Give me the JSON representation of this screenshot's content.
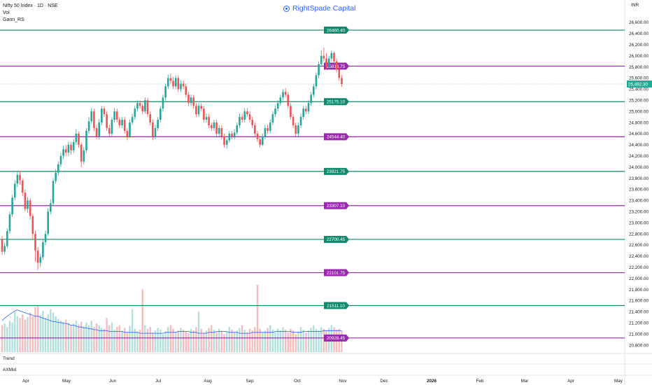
{
  "header": {
    "symbol_title": "Nifty 50 Index · 1D · NSE",
    "indicator_vol": "Vol",
    "indicator_gann": "Gann_RS",
    "watermark": "RightSpade Capital",
    "currency": "INR"
  },
  "panes": {
    "trend_label": "Trend",
    "axmid_label": "AXMid"
  },
  "colors": {
    "up": "#26a69a",
    "down": "#ef5350",
    "vol_up": "#b2dfdb",
    "vol_down": "#f8bbbd",
    "support": "#0f8a6c",
    "resistance": "#9c27b0",
    "ma": "#2962ff",
    "price_tag": "#22ab94"
  },
  "chart_data": {
    "type": "candlestick",
    "title": "Nifty 50 Index · 1D · NSE",
    "y_axis": {
      "min": 20750,
      "max": 26700,
      "tick_labels": [
        "26,600.00",
        "26,400.00",
        "26,200.00",
        "26,000.00",
        "25,800.00",
        "25,600.00",
        "25,400.00",
        "25,200.00",
        "25,000.00",
        "24,800.00",
        "24,600.00",
        "24,400.00",
        "24,200.00",
        "24,000.00",
        "23,800.00",
        "23,600.00",
        "23,400.00",
        "23,200.00",
        "23,000.00",
        "22,800.00",
        "22,600.00",
        "22,400.00",
        "22,200.00",
        "22,000.00",
        "21,800.00",
        "21,600.00",
        "21,400.00",
        "21,200.00",
        "21,000.00",
        "20,800.00"
      ]
    },
    "x_axis": {
      "tick_labels": [
        "Apr",
        "May",
        "Jun",
        "Jul",
        "Aug",
        "Sep",
        "Oct",
        "Nov",
        "Dec",
        "2026",
        "Feb",
        "Mar",
        "Apr",
        "May"
      ]
    },
    "last_price": 25492.3,
    "last_price_label": "25,492.30",
    "levels": [
      {
        "value": 26460.4,
        "label": "26460.40",
        "kind": "support"
      },
      {
        "value": 25813.75,
        "label": "25813.75",
        "kind": "resistance"
      },
      {
        "value": 25175.1,
        "label": "25175.10",
        "kind": "support"
      },
      {
        "value": 24544.4,
        "label": "24544.40",
        "kind": "resistance"
      },
      {
        "value": 23921.75,
        "label": "23921.75",
        "kind": "support"
      },
      {
        "value": 23307.1,
        "label": "23307.10",
        "kind": "resistance"
      },
      {
        "value": 22700.45,
        "label": "22700.45",
        "kind": "support"
      },
      {
        "value": 22101.75,
        "label": "22101.75",
        "kind": "resistance"
      },
      {
        "value": 21511.1,
        "label": "21511.10",
        "kind": "support"
      },
      {
        "value": 20928.45,
        "label": "20928.45",
        "kind": "resistance"
      }
    ],
    "candles": [
      [
        22700,
        22480,
        22760,
        22420
      ],
      [
        22480,
        22580,
        22640,
        22430
      ],
      [
        22580,
        22850,
        22900,
        22540
      ],
      [
        22850,
        23150,
        23200,
        22800
      ],
      [
        23150,
        23450,
        23500,
        23100
      ],
      [
        23450,
        23700,
        23760,
        23400
      ],
      [
        23700,
        23860,
        23920,
        23640
      ],
      [
        23860,
        23760,
        23930,
        23680
      ],
      [
        23760,
        23540,
        23800,
        23480
      ],
      [
        23540,
        23250,
        23600,
        23200
      ],
      [
        23250,
        23400,
        23460,
        23180
      ],
      [
        23400,
        23120,
        23440,
        23050
      ],
      [
        23120,
        22800,
        23160,
        22700
      ],
      [
        22800,
        22500,
        22860,
        22300
      ],
      [
        22500,
        22280,
        22560,
        22150
      ],
      [
        22280,
        22380,
        22440,
        22200
      ],
      [
        22380,
        22650,
        22700,
        22330
      ],
      [
        22650,
        22800,
        22860,
        22600
      ],
      [
        22800,
        23200,
        23260,
        22760
      ],
      [
        23200,
        23350,
        23420,
        23150
      ],
      [
        23350,
        23750,
        23800,
        23300
      ],
      [
        23750,
        23900,
        23960,
        23700
      ],
      [
        23900,
        24050,
        24100,
        23850
      ],
      [
        24050,
        24200,
        24260,
        24000
      ],
      [
        24200,
        24320,
        24380,
        24150
      ],
      [
        24320,
        24260,
        24400,
        24200
      ],
      [
        24260,
        24400,
        24460,
        24200
      ],
      [
        24400,
        24300,
        24450,
        24220
      ],
      [
        24300,
        24450,
        24500,
        24250
      ],
      [
        24450,
        24600,
        24680,
        24400
      ],
      [
        24600,
        24400,
        24640,
        24350
      ],
      [
        24400,
        24100,
        24440,
        24000
      ],
      [
        24100,
        24300,
        24360,
        24050
      ],
      [
        24300,
        24650,
        24700,
        24250
      ],
      [
        24650,
        24820,
        24900,
        24600
      ],
      [
        24820,
        25000,
        25060,
        24780
      ],
      [
        25000,
        24700,
        25050,
        24650
      ],
      [
        24700,
        24550,
        24760,
        24500
      ],
      [
        24550,
        24800,
        24860,
        24500
      ],
      [
        24800,
        25050,
        25100,
        24750
      ],
      [
        25050,
        24950,
        25100,
        24900
      ],
      [
        24950,
        24700,
        25000,
        24650
      ],
      [
        24700,
        24600,
        24760,
        24550
      ],
      [
        24600,
        24850,
        24900,
        24560
      ],
      [
        24850,
        25000,
        25060,
        24800
      ],
      [
        25000,
        24850,
        25050,
        24800
      ],
      [
        24850,
        24750,
        24900,
        24700
      ],
      [
        24750,
        24850,
        24900,
        24700
      ],
      [
        24850,
        24650,
        24900,
        24600
      ],
      [
        24650,
        24550,
        24700,
        24480
      ],
      [
        24550,
        24800,
        24850,
        24520
      ],
      [
        24800,
        24900,
        24960,
        24760
      ],
      [
        24900,
        25050,
        25100,
        24850
      ],
      [
        25050,
        25150,
        25200,
        25000
      ],
      [
        25150,
        25100,
        25200,
        25050
      ],
      [
        25100,
        25000,
        25150,
        24950
      ],
      [
        25000,
        25200,
        25250,
        24960
      ],
      [
        25200,
        24950,
        25250,
        24900
      ],
      [
        24950,
        24800,
        25000,
        24750
      ],
      [
        24800,
        24550,
        24850,
        24480
      ],
      [
        24550,
        24700,
        24760,
        24500
      ],
      [
        24700,
        24850,
        24900,
        24650
      ],
      [
        24850,
        25050,
        25100,
        24800
      ],
      [
        25050,
        25250,
        25300,
        25000
      ],
      [
        25250,
        25450,
        25500,
        25200
      ],
      [
        25450,
        25600,
        25660,
        25400
      ],
      [
        25600,
        25550,
        25680,
        25500
      ],
      [
        25550,
        25450,
        25620,
        25400
      ],
      [
        25450,
        25600,
        25650,
        25400
      ],
      [
        25600,
        25400,
        25640,
        25350
      ],
      [
        25400,
        25500,
        25560,
        25350
      ],
      [
        25500,
        25450,
        25560,
        25400
      ],
      [
        25450,
        25300,
        25500,
        25250
      ],
      [
        25300,
        25150,
        25350,
        25100
      ],
      [
        25150,
        25250,
        25300,
        25100
      ],
      [
        25250,
        25100,
        25300,
        25050
      ],
      [
        25100,
        24950,
        25150,
        24900
      ],
      [
        24950,
        25100,
        25150,
        24900
      ],
      [
        25100,
        25050,
        25150,
        25000
      ],
      [
        25050,
        24850,
        25100,
        24800
      ],
      [
        24850,
        24900,
        24960,
        24800
      ],
      [
        24900,
        24750,
        24950,
        24700
      ],
      [
        24750,
        24700,
        24800,
        24650
      ],
      [
        24700,
        24800,
        24850,
        24650
      ],
      [
        24800,
        24600,
        24850,
        24550
      ],
      [
        24600,
        24700,
        24750,
        24550
      ],
      [
        24700,
        24550,
        24750,
        24500
      ],
      [
        24550,
        24400,
        24600,
        24350
      ],
      [
        24400,
        24480,
        24520,
        24330
      ],
      [
        24480,
        24600,
        24650,
        24440
      ],
      [
        24600,
        24550,
        24650,
        24500
      ],
      [
        24550,
        24620,
        24680,
        24500
      ],
      [
        24620,
        24750,
        24800,
        24580
      ],
      [
        24750,
        24900,
        24960,
        24700
      ],
      [
        24900,
        24850,
        24960,
        24800
      ],
      [
        24850,
        25000,
        25060,
        24800
      ],
      [
        25000,
        24950,
        25060,
        24900
      ],
      [
        24950,
        24850,
        25000,
        24800
      ],
      [
        24850,
        24750,
        24900,
        24700
      ],
      [
        24750,
        24600,
        24800,
        24550
      ],
      [
        24600,
        24500,
        24650,
        24450
      ],
      [
        24500,
        24400,
        24560,
        24350
      ],
      [
        24400,
        24550,
        24600,
        24380
      ],
      [
        24550,
        24700,
        24760,
        24500
      ],
      [
        24700,
        24650,
        24760,
        24600
      ],
      [
        24650,
        24800,
        24850,
        24600
      ],
      [
        24800,
        24950,
        25000,
        24750
      ],
      [
        24950,
        25050,
        25100,
        24900
      ],
      [
        25050,
        25150,
        25200,
        25000
      ],
      [
        25150,
        25250,
        25300,
        25100
      ],
      [
        25250,
        25350,
        25400,
        25200
      ],
      [
        25350,
        25300,
        25420,
        25250
      ],
      [
        25300,
        25100,
        25350,
        25050
      ],
      [
        25100,
        24900,
        25150,
        24850
      ],
      [
        24900,
        24750,
        24950,
        24700
      ],
      [
        24750,
        24600,
        24800,
        24550
      ],
      [
        24600,
        24750,
        24800,
        24550
      ],
      [
        24750,
        24900,
        24960,
        24700
      ],
      [
        24900,
        25050,
        25100,
        24850
      ],
      [
        25050,
        25000,
        25100,
        24950
      ],
      [
        25000,
        25150,
        25200,
        24950
      ],
      [
        25150,
        25300,
        25350,
        25100
      ],
      [
        25300,
        25450,
        25500,
        25250
      ],
      [
        25450,
        25650,
        25700,
        25400
      ],
      [
        25650,
        25850,
        25900,
        25600
      ],
      [
        25850,
        26000,
        26100,
        25800
      ],
      [
        26000,
        25950,
        26150,
        25900
      ],
      [
        25950,
        25800,
        26050,
        25750
      ],
      [
        25800,
        25950,
        26000,
        25750
      ],
      [
        25950,
        26050,
        26100,
        25900
      ],
      [
        26050,
        25900,
        26080,
        25850
      ],
      [
        25900,
        25750,
        25950,
        25700
      ],
      [
        25750,
        25600,
        25800,
        25550
      ],
      [
        25600,
        25492,
        25650,
        25440
      ]
    ],
    "volume_ma": [
      0.35,
      0.38,
      0.4,
      0.42,
      0.44,
      0.46,
      0.47,
      0.46,
      0.45,
      0.44,
      0.43,
      0.42,
      0.41,
      0.4,
      0.4,
      0.39,
      0.38,
      0.37,
      0.36,
      0.35,
      0.34,
      0.34,
      0.33,
      0.33,
      0.32,
      0.32,
      0.31,
      0.3,
      0.3,
      0.29,
      0.28,
      0.28,
      0.27,
      0.27,
      0.26,
      0.26,
      0.25,
      0.25,
      0.24,
      0.24,
      0.24,
      0.24,
      0.23,
      0.23,
      0.23,
      0.23,
      0.23,
      0.23,
      0.22,
      0.22,
      0.22,
      0.22,
      0.22,
      0.22,
      0.21,
      0.21,
      0.21,
      0.21,
      0.21,
      0.21,
      0.21,
      0.21,
      0.21,
      0.21,
      0.22,
      0.22,
      0.22,
      0.22,
      0.22,
      0.23,
      0.23,
      0.23,
      0.23,
      0.23,
      0.22,
      0.22,
      0.22,
      0.21,
      0.21,
      0.21,
      0.21,
      0.22,
      0.22,
      0.22,
      0.23,
      0.23,
      0.23,
      0.23,
      0.23,
      0.22,
      0.22,
      0.22,
      0.22,
      0.21,
      0.21,
      0.21,
      0.21,
      0.21,
      0.22,
      0.22,
      0.22,
      0.22,
      0.22,
      0.22,
      0.22,
      0.22,
      0.22,
      0.23,
      0.23,
      0.23,
      0.23,
      0.23,
      0.23,
      0.23,
      0.22,
      0.22,
      0.22,
      0.22,
      0.23,
      0.23,
      0.23,
      0.23,
      0.23,
      0.23,
      0.23,
      0.23,
      0.24,
      0.24,
      0.24,
      0.24,
      0.24,
      0.24,
      0.24,
      0.24
    ],
    "volumes": [
      0.3,
      0.32,
      0.28,
      0.35,
      0.33,
      0.45,
      0.4,
      0.38,
      0.42,
      0.36,
      0.39,
      0.44,
      0.4,
      0.5,
      0.52,
      0.41,
      0.46,
      0.38,
      0.42,
      0.48,
      0.44,
      0.4,
      0.37,
      0.35,
      0.34,
      0.36,
      0.33,
      0.3,
      0.32,
      0.35,
      0.31,
      0.34,
      0.29,
      0.33,
      0.3,
      0.35,
      0.28,
      0.32,
      0.3,
      0.27,
      0.26,
      0.38,
      0.3,
      0.33,
      0.25,
      0.28,
      0.3,
      0.24,
      0.27,
      0.22,
      0.29,
      0.48,
      0.26,
      0.23,
      0.25,
      0.7,
      0.3,
      0.26,
      0.28,
      0.22,
      0.24,
      0.27,
      0.25,
      0.2,
      0.23,
      0.28,
      0.3,
      0.26,
      0.22,
      0.24,
      0.27,
      0.25,
      0.23,
      0.21,
      0.26,
      0.24,
      0.28,
      0.45,
      0.26,
      0.22,
      0.24,
      0.27,
      0.3,
      0.25,
      0.22,
      0.26,
      0.24,
      0.2,
      0.23,
      0.28,
      0.25,
      0.22,
      0.24,
      0.27,
      0.3,
      0.25,
      0.22,
      0.26,
      0.24,
      0.28,
      0.75,
      0.26,
      0.22,
      0.24,
      0.27,
      0.3,
      0.25,
      0.22,
      0.26,
      0.24,
      0.28,
      0.25,
      0.22,
      0.26,
      0.24,
      0.2,
      0.23,
      0.28,
      0.25,
      0.22,
      0.24,
      0.27,
      0.3,
      0.26,
      0.24,
      0.28,
      0.26,
      0.24,
      0.27,
      0.3,
      0.28,
      0.25,
      0.26,
      0.24
    ]
  }
}
